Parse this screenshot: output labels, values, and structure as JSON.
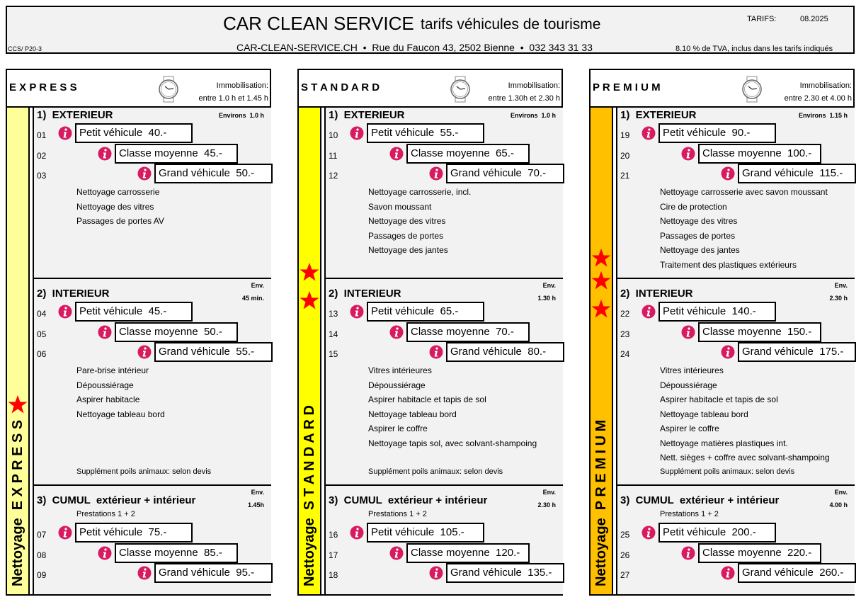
{
  "header": {
    "title": "CAR CLEAN SERVICE",
    "subtitle": "tarifs véhicules de tourisme",
    "tarifs_label": "TARIFS:",
    "tarifs_date": "08.2025",
    "ref": "CCS/ P20-3",
    "contact": "CAR-CLEAN-SERVICE.CH  •  Rue du Faucon 43, 2502 Bienne  •  032 343 31 33",
    "tva": "8.10 % de TVA, inclus dans les tarifs indiqués"
  },
  "panels": [
    {
      "name": "E X P R E S S",
      "immob_label": "Immobilisation:",
      "immob_value": "entre 1.0 h et  1.45 h",
      "strip_color": "#ffff99",
      "vertical_label": "Nettoyage  E X P R E S S",
      "stars": 1,
      "sections": [
        {
          "title": "1)  EXTERIEUR",
          "duration_label": "",
          "duration": "Environs  1.0 h",
          "items": [
            {
              "num": "01",
              "label": "Petit véhicule  40.-"
            },
            {
              "num": "02",
              "label": "Classe moyenne  45.-"
            },
            {
              "num": "03",
              "label": "Grand véhicule  50.-"
            }
          ],
          "features": [
            "Nettoyage carrosserie",
            "Nettoyage des vitres",
            "Passages de portes AV"
          ],
          "note": ""
        },
        {
          "title": "2)  INTERIEUR",
          "duration_label": "Env.",
          "duration": "45 min.",
          "items": [
            {
              "num": "04",
              "label": "Petit véhicule  45.-"
            },
            {
              "num": "05",
              "label": "Classe moyenne  50.-"
            },
            {
              "num": "06",
              "label": "Grand véhicule  55.-"
            }
          ],
          "features": [
            "Pare-brise intérieur",
            "Dépoussiérage",
            "Aspirer habitacle",
            "Nettoyage tableau bord"
          ],
          "note": "Supplément poils animaux: selon devis"
        },
        {
          "title": "3)  CUMUL  extérieur + intérieur",
          "duration_label": "Env.",
          "duration": "1.45h",
          "subtitle": "Prestations 1 + 2",
          "items": [
            {
              "num": "07",
              "label": "Petit véhicule  75.-"
            },
            {
              "num": "08",
              "label": "Classe moyenne  85.-"
            },
            {
              "num": "09",
              "label": "Grand véhicule  95.-"
            }
          ],
          "features": [],
          "note": ""
        }
      ]
    },
    {
      "name": "S T A N D A R D",
      "immob_label": "Immobilisation:",
      "immob_value": "entre 1.30h et 2.30 h",
      "strip_color": "#ffff00",
      "vertical_label": "Nettoyage  S T A N D A R D",
      "stars": 2,
      "sections": [
        {
          "title": "1)  EXTERIEUR",
          "duration_label": "",
          "duration": "Environs  1.0 h",
          "items": [
            {
              "num": "10",
              "label": "Petit véhicule  55.-"
            },
            {
              "num": "11",
              "label": "Classe moyenne  65.-"
            },
            {
              "num": "12",
              "label": "Grand véhicule  70.-"
            }
          ],
          "features": [
            "Nettoyage carrosserie, incl.",
            "Savon moussant",
            "Nettoyage des vitres",
            "Passages de portes",
            "Nettoyage des jantes"
          ],
          "note": ""
        },
        {
          "title": "2)  INTERIEUR",
          "duration_label": "Env.",
          "duration": "1.30 h",
          "items": [
            {
              "num": "13",
              "label": "Petit véhicule  65.-"
            },
            {
              "num": "14",
              "label": "Classe moyenne  70.-"
            },
            {
              "num": "15",
              "label": "Grand véhicule  80.-"
            }
          ],
          "features": [
            "Vitres intérieures",
            "Dépoussiérage",
            "Aspirer habitacle et tapis de sol",
            "Nettoyage tableau bord",
            "Aspirer le coffre",
            "Nettoyage tapis sol, avec solvant-shampoing"
          ],
          "note": "Supplément poils animaux: selon devis"
        },
        {
          "title": "3)  CUMUL  extérieur + intérieur",
          "duration_label": "Env.",
          "duration": "2.30 h",
          "subtitle": "Prestations 1 + 2",
          "items": [
            {
              "num": "16",
              "label": "Petit véhicule  105.-"
            },
            {
              "num": "17",
              "label": "Classe moyenne  120.-"
            },
            {
              "num": "18",
              "label": "Grand véhicule  135.-"
            }
          ],
          "features": [],
          "note": ""
        }
      ]
    },
    {
      "name": "P R E M I U M",
      "immob_label": "Immobilisation:",
      "immob_value": "entre 2.30 et  4.00 h",
      "strip_color": "#ffc000",
      "vertical_label": "Nettoyage  P R E M I U M",
      "stars": 3,
      "sections": [
        {
          "title": "1)  EXTERIEUR",
          "duration_label": "",
          "duration": "Environs  1.15 h",
          "items": [
            {
              "num": "19",
              "label": "Petit véhicule  90.-"
            },
            {
              "num": "20",
              "label": "Classe moyenne  100.-"
            },
            {
              "num": "21",
              "label": "Grand véhicule  115.-"
            }
          ],
          "features": [
            "Nettoyage carrosserie avec savon moussant",
            "Cire de protection",
            "Nettoyage des vitres",
            "Passages de portes",
            "Nettoyage des jantes",
            "Traitement des plastiques extérieurs"
          ],
          "note": ""
        },
        {
          "title": "2)  INTERIEUR",
          "duration_label": "Env.",
          "duration": "2.30 h",
          "items": [
            {
              "num": "22",
              "label": "Petit véhicule  140.-"
            },
            {
              "num": "23",
              "label": "Classe moyenne  150.-"
            },
            {
              "num": "24",
              "label": "Grand véhicule  175.-"
            }
          ],
          "features": [
            "Vitres intérieures",
            "Dépoussiérage",
            "Aspirer habitacle et tapis de sol",
            "Nettoyage tableau bord",
            "Aspirer le coffre",
            "Nettoyage matières plastiques int.",
            "Nett. sièges + coffre avec solvant-shampoing"
          ],
          "note": "Supplément poils animaux: selon devis"
        },
        {
          "title": "3)  CUMUL  extérieur + intérieur",
          "duration_label": "Env.",
          "duration": "4.00 h",
          "subtitle": "Prestations 1 + 2",
          "items": [
            {
              "num": "25",
              "label": "Petit véhicule  200.-"
            },
            {
              "num": "26",
              "label": "Classe moyenne  220.-"
            },
            {
              "num": "27",
              "label": "Grand véhicule  260.-"
            }
          ],
          "features": [],
          "note": ""
        }
      ]
    }
  ],
  "colors": {
    "star": "#ff0000",
    "info_icon": "#d81b60",
    "panel_bg": "#f2f2f2"
  },
  "icons": {
    "watch": "watch-icon",
    "info": "info-icon",
    "star": "star-icon"
  }
}
